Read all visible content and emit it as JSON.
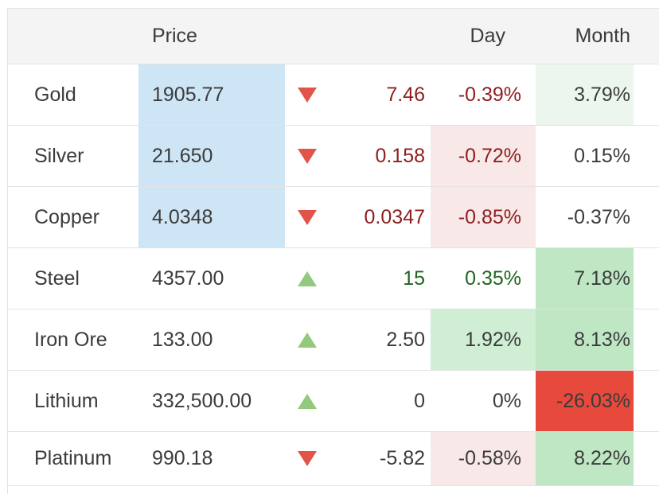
{
  "header": {
    "price": "Price",
    "day": "Day",
    "month": "Month"
  },
  "colors": {
    "header-bg": "#f4f4f4",
    "border": "#e3e3e3",
    "text": "#3b3b3b",
    "red-text": "#8e1e1e",
    "green-text": "#1e651e",
    "blue-bg": "#cde5f5",
    "pink-bg": "#f9e8e8",
    "palegreen-bg": "#ecf6ec",
    "green-month-bg": "#bfe7c4",
    "green-day-bg": "#cfeed3",
    "red-bg": "#e8493d",
    "up-arrow": "#93c97d",
    "down-arrow": "#e2544a"
  },
  "rows": [
    {
      "name": "Gold",
      "price": "1905.77",
      "price_bg": "blue",
      "direction": "down",
      "change": "7.46",
      "change_color": "red",
      "day": "-0.39%",
      "day_color": "red",
      "day_bg": "none",
      "month": "3.79%",
      "month_bg": "palegreen"
    },
    {
      "name": "Silver",
      "price": "21.650",
      "price_bg": "blue",
      "direction": "down",
      "change": "0.158",
      "change_color": "red",
      "day": "-0.72%",
      "day_color": "red",
      "day_bg": "pink",
      "month": "0.15%",
      "month_bg": "none"
    },
    {
      "name": "Copper",
      "price": "4.0348",
      "price_bg": "blue",
      "direction": "down",
      "change": "0.0347",
      "change_color": "red",
      "day": "-0.85%",
      "day_color": "red",
      "day_bg": "pink",
      "month": "-0.37%",
      "month_bg": "none"
    },
    {
      "name": "Steel",
      "price": "4357.00",
      "price_bg": "none",
      "direction": "up",
      "change": "15",
      "change_color": "green",
      "day": "0.35%",
      "day_color": "green",
      "day_bg": "none",
      "month": "7.18%",
      "month_bg": "green"
    },
    {
      "name": "Iron Ore",
      "price": "133.00",
      "price_bg": "none",
      "direction": "up",
      "change": "2.50",
      "change_color": "dark",
      "day": "1.92%",
      "day_color": "dark",
      "day_bg": "lightgreen",
      "month": "8.13%",
      "month_bg": "green"
    },
    {
      "name": "Lithium",
      "price": "332,500.00",
      "price_bg": "none",
      "direction": "up",
      "change": "0",
      "change_color": "dark",
      "day": "0%",
      "day_color": "dark",
      "day_bg": "none",
      "month": "-26.03%",
      "month_bg": "red"
    },
    {
      "name": "Platinum",
      "price": "990.18",
      "price_bg": "none",
      "direction": "down",
      "change": "-5.82",
      "change_color": "dark",
      "day": "-0.58%",
      "day_color": "dark",
      "day_bg": "pink",
      "month": "8.22%",
      "month_bg": "green"
    }
  ]
}
